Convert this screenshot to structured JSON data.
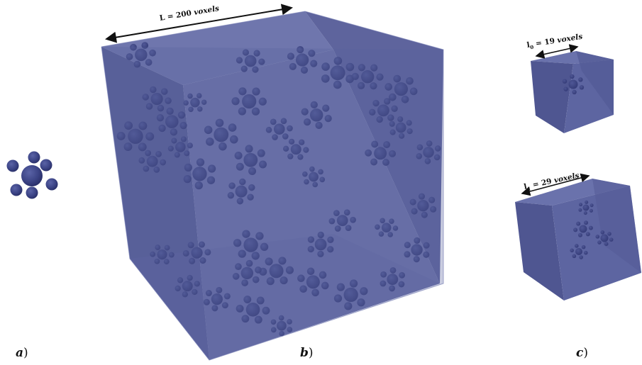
{
  "panels": {
    "a": {
      "label": "a",
      "paren": ")"
    },
    "b": {
      "label": "b",
      "paren": ")"
    },
    "c": {
      "label": "c",
      "paren": ")"
    }
  },
  "dimensions": {
    "big_cube": {
      "symbol": "L",
      "sub": "",
      "equals": " = ",
      "value": "200",
      "unit": "voxels"
    },
    "small_cube_0": {
      "symbol": "l",
      "sub": "0",
      "equals": " = ",
      "value": "19",
      "unit": "voxels"
    },
    "small_cube_1": {
      "symbol": "l",
      "sub": "1",
      "equals": " = ",
      "value": "29",
      "unit": "voxels"
    }
  },
  "colors": {
    "cube_front": "#5a629e",
    "cube_side": "#4e5590",
    "cube_top": "#6a72ac",
    "cube_edge": "#7a82b6",
    "sphere": "#3e4687",
    "sphere_dark": "#2b3272"
  }
}
